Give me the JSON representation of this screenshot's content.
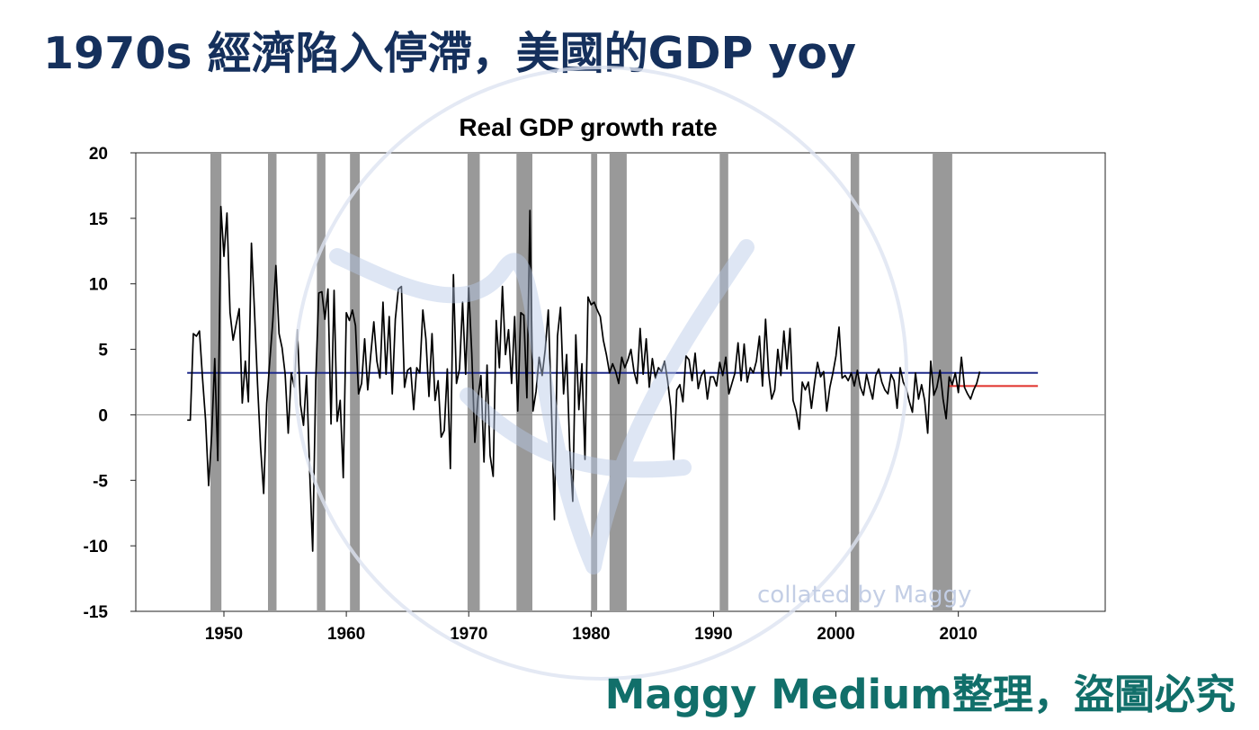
{
  "page": {
    "title": "1970s 經濟陷入停滯，美國的GDP yoy",
    "credit": "Maggy Medium整理，盜圖必究"
  },
  "watermark": {
    "monogram": "Mh",
    "text": "collated by Maggy"
  },
  "colors": {
    "title": "#15305c",
    "credit": "#116f6a",
    "recession_band": "#999999",
    "series_line": "#000000",
    "long_run_average": "#1f2a8a",
    "post_2009_average": "#e0302a",
    "zero_line": "#888888",
    "watermark": "#c3cee5"
  },
  "chart_data": {
    "type": "line",
    "title": "Real GDP growth rate",
    "xlabel": "",
    "ylabel": "",
    "xlim": [
      1942.8,
      2022.0
    ],
    "ylim": [
      -15,
      20
    ],
    "xticks": [
      1950,
      1960,
      1970,
      1980,
      1990,
      2000,
      2010
    ],
    "yticks": [
      20,
      15,
      10,
      5,
      0,
      -5,
      -10,
      -15
    ],
    "grid": false,
    "legend": "none",
    "recessions": [
      [
        1948.9,
        1949.8
      ],
      [
        1953.6,
        1954.3
      ],
      [
        1957.6,
        1958.3
      ],
      [
        1960.3,
        1961.1
      ],
      [
        1969.9,
        1970.9
      ],
      [
        1973.9,
        1975.2
      ],
      [
        1980.0,
        1980.5
      ],
      [
        1981.5,
        1982.9
      ],
      [
        1990.5,
        1991.2
      ],
      [
        2001.2,
        2001.9
      ],
      [
        2007.9,
        2009.5
      ]
    ],
    "series": [
      {
        "values": [
          [
            1947.0,
            -0.4
          ],
          [
            1947.25,
            -0.4
          ],
          [
            1947.5,
            6.2
          ],
          [
            1947.75,
            6.0
          ],
          [
            1948.0,
            6.4
          ],
          [
            1948.25,
            2.8
          ],
          [
            1948.5,
            -0.4
          ],
          [
            1948.75,
            -5.4
          ],
          [
            1949.0,
            -1.5
          ],
          [
            1949.25,
            4.3
          ],
          [
            1949.5,
            -3.5
          ],
          [
            1949.75,
            15.9
          ],
          [
            1950.0,
            12.1
          ],
          [
            1950.25,
            15.4
          ],
          [
            1950.5,
            7.8
          ],
          [
            1950.75,
            5.7
          ],
          [
            1951.0,
            6.9
          ],
          [
            1951.25,
            8.1
          ],
          [
            1951.5,
            0.9
          ],
          [
            1951.75,
            4.1
          ],
          [
            1952.0,
            1.0
          ],
          [
            1952.25,
            13.1
          ],
          [
            1952.5,
            7.9
          ],
          [
            1952.75,
            2.3
          ],
          [
            1953.0,
            -2.5
          ],
          [
            1953.25,
            -6.0
          ],
          [
            1953.5,
            0.9
          ],
          [
            1953.75,
            4.1
          ],
          [
            1954.0,
            7.2
          ],
          [
            1954.25,
            11.4
          ],
          [
            1954.5,
            6.2
          ],
          [
            1954.75,
            5.1
          ],
          [
            1955.0,
            3.1
          ],
          [
            1955.25,
            -1.4
          ],
          [
            1955.5,
            3.2
          ],
          [
            1955.75,
            2.1
          ],
          [
            1956.0,
            6.5
          ],
          [
            1956.25,
            0.8
          ],
          [
            1956.5,
            -0.8
          ],
          [
            1956.75,
            3.0
          ],
          [
            1957.0,
            -4.2
          ],
          [
            1957.25,
            -10.4
          ],
          [
            1957.5,
            2.6
          ],
          [
            1957.75,
            9.3
          ],
          [
            1958.0,
            9.4
          ],
          [
            1958.25,
            7.3
          ],
          [
            1958.5,
            9.6
          ],
          [
            1958.75,
            -0.7
          ],
          [
            1959.0,
            9.5
          ],
          [
            1959.25,
            -0.5
          ],
          [
            1959.5,
            1.1
          ],
          [
            1959.75,
            -4.8
          ],
          [
            1960.0,
            7.8
          ],
          [
            1960.25,
            7.2
          ],
          [
            1960.5,
            8.0
          ],
          [
            1960.75,
            6.8
          ],
          [
            1961.0,
            1.6
          ],
          [
            1961.25,
            2.4
          ],
          [
            1961.5,
            5.8
          ],
          [
            1961.75,
            1.9
          ],
          [
            1962.0,
            4.6
          ],
          [
            1962.25,
            7.1
          ],
          [
            1962.5,
            4.1
          ],
          [
            1962.75,
            2.8
          ],
          [
            1963.0,
            8.6
          ],
          [
            1963.25,
            3.1
          ],
          [
            1963.5,
            7.5
          ],
          [
            1963.75,
            1.6
          ],
          [
            1964.0,
            7.3
          ],
          [
            1964.25,
            9.6
          ],
          [
            1964.5,
            9.8
          ],
          [
            1964.75,
            2.1
          ],
          [
            1965.0,
            3.4
          ],
          [
            1965.25,
            3.6
          ],
          [
            1965.5,
            0.4
          ],
          [
            1965.75,
            3.6
          ],
          [
            1966.0,
            3.2
          ],
          [
            1966.25,
            8.0
          ],
          [
            1966.5,
            5.8
          ],
          [
            1966.75,
            1.4
          ],
          [
            1967.0,
            6.2
          ],
          [
            1967.25,
            1.1
          ],
          [
            1967.5,
            2.6
          ],
          [
            1967.75,
            -1.7
          ],
          [
            1968.0,
            -1.2
          ],
          [
            1968.25,
            3.5
          ],
          [
            1968.5,
            -4.1
          ],
          [
            1968.75,
            10.7
          ],
          [
            1969.0,
            2.4
          ],
          [
            1969.25,
            3.5
          ],
          [
            1969.5,
            8.6
          ],
          [
            1969.75,
            3.1
          ],
          [
            1970.0,
            9.7
          ],
          [
            1970.25,
            4.7
          ],
          [
            1970.5,
            -2.1
          ],
          [
            1970.75,
            1.2
          ],
          [
            1971.0,
            3.0
          ],
          [
            1971.25,
            -3.6
          ],
          [
            1971.5,
            3.8
          ],
          [
            1971.75,
            -3.1
          ],
          [
            1972.0,
            -4.7
          ],
          [
            1972.25,
            7.2
          ],
          [
            1972.5,
            3.6
          ],
          [
            1972.75,
            9.8
          ],
          [
            1973.0,
            4.6
          ],
          [
            1973.25,
            6.5
          ],
          [
            1973.5,
            2.4
          ],
          [
            1973.75,
            7.5
          ],
          [
            1974.0,
            0.3
          ],
          [
            1974.25,
            7.8
          ],
          [
            1974.5,
            7.6
          ],
          [
            1974.75,
            1.3
          ],
          [
            1975.0,
            15.6
          ],
          [
            1975.25,
            0.3
          ],
          [
            1975.5,
            1.8
          ],
          [
            1975.75,
            4.4
          ],
          [
            1976.0,
            3.0
          ],
          [
            1976.25,
            5.0
          ],
          [
            1976.5,
            8.0
          ],
          [
            1976.75,
            0.8
          ],
          [
            1977.0,
            -8.0
          ],
          [
            1977.25,
            6.0
          ],
          [
            1977.5,
            8.2
          ],
          [
            1977.75,
            1.6
          ],
          [
            1978.0,
            4.6
          ],
          [
            1978.25,
            -2.5
          ],
          [
            1978.5,
            -6.6
          ],
          [
            1978.75,
            6.1
          ],
          [
            1979.0,
            0.4
          ],
          [
            1979.25,
            3.9
          ],
          [
            1979.5,
            -3.4
          ],
          [
            1979.75,
            9.0
          ],
          [
            1980.0,
            8.4
          ],
          [
            1980.25,
            8.6
          ],
          [
            1980.5,
            8.0
          ],
          [
            1980.75,
            7.5
          ],
          [
            1981.0,
            5.7
          ],
          [
            1981.25,
            4.6
          ],
          [
            1981.5,
            3.2
          ],
          [
            1981.75,
            3.9
          ],
          [
            1982.0,
            3.3
          ],
          [
            1982.25,
            2.4
          ],
          [
            1982.5,
            4.4
          ],
          [
            1982.75,
            3.6
          ],
          [
            1983.0,
            4.2
          ],
          [
            1983.25,
            5.0
          ],
          [
            1983.5,
            3.3
          ],
          [
            1983.75,
            2.4
          ],
          [
            1984.0,
            6.6
          ],
          [
            1984.25,
            3.1
          ],
          [
            1984.5,
            5.8
          ],
          [
            1984.75,
            2.1
          ],
          [
            1985.0,
            4.3
          ],
          [
            1985.25,
            2.8
          ],
          [
            1985.5,
            3.6
          ],
          [
            1985.75,
            3.3
          ],
          [
            1986.0,
            4.1
          ],
          [
            1986.25,
            2.6
          ],
          [
            1986.5,
            0.6
          ],
          [
            1986.75,
            -3.4
          ],
          [
            1987.0,
            1.9
          ],
          [
            1987.25,
            2.3
          ],
          [
            1987.5,
            1.0
          ],
          [
            1987.75,
            4.5
          ],
          [
            1988.0,
            4.2
          ],
          [
            1988.25,
            2.6
          ],
          [
            1988.5,
            4.7
          ],
          [
            1988.75,
            2.0
          ],
          [
            1989.0,
            3.0
          ],
          [
            1989.25,
            3.4
          ],
          [
            1989.5,
            1.2
          ],
          [
            1989.75,
            2.9
          ],
          [
            1990.0,
            2.9
          ],
          [
            1990.25,
            2.2
          ],
          [
            1990.5,
            4.0
          ],
          [
            1990.75,
            3.0
          ],
          [
            1991.0,
            4.4
          ],
          [
            1991.25,
            1.6
          ],
          [
            1991.5,
            2.4
          ],
          [
            1991.75,
            3.2
          ],
          [
            1992.0,
            5.5
          ],
          [
            1992.25,
            2.6
          ],
          [
            1992.5,
            5.4
          ],
          [
            1992.75,
            2.5
          ],
          [
            1993.0,
            3.6
          ],
          [
            1993.25,
            3.2
          ],
          [
            1993.5,
            4.1
          ],
          [
            1993.75,
            6.0
          ],
          [
            1994.0,
            2.2
          ],
          [
            1994.25,
            7.3
          ],
          [
            1994.5,
            3.2
          ],
          [
            1994.75,
            1.2
          ],
          [
            1995.0,
            1.9
          ],
          [
            1995.25,
            5.0
          ],
          [
            1995.5,
            3.0
          ],
          [
            1995.75,
            6.4
          ],
          [
            1996.0,
            3.5
          ],
          [
            1996.25,
            6.6
          ],
          [
            1996.5,
            1.1
          ],
          [
            1996.75,
            0.3
          ],
          [
            1997.0,
            -1.1
          ],
          [
            1997.25,
            2.5
          ],
          [
            1997.5,
            1.9
          ],
          [
            1997.75,
            2.5
          ],
          [
            1998.0,
            0.5
          ],
          [
            1998.25,
            2.4
          ],
          [
            1998.5,
            4.0
          ],
          [
            1998.75,
            2.9
          ],
          [
            1999.0,
            3.3
          ],
          [
            1999.25,
            0.3
          ],
          [
            1999.5,
            2.1
          ],
          [
            1999.75,
            3.2
          ],
          [
            2000.0,
            4.5
          ],
          [
            2000.25,
            6.7
          ],
          [
            2000.5,
            2.8
          ],
          [
            2000.75,
            3.0
          ],
          [
            2001.0,
            2.6
          ],
          [
            2001.25,
            3.2
          ],
          [
            2001.5,
            2.2
          ],
          [
            2001.75,
            3.4
          ],
          [
            2002.0,
            2.1
          ],
          [
            2002.25,
            1.5
          ],
          [
            2002.5,
            3.1
          ],
          [
            2002.75,
            2.1
          ],
          [
            2003.0,
            1.2
          ],
          [
            2003.25,
            3.0
          ],
          [
            2003.5,
            3.5
          ],
          [
            2003.75,
            2.5
          ],
          [
            2004.0,
            1.9
          ],
          [
            2004.25,
            1.6
          ],
          [
            2004.5,
            3.1
          ],
          [
            2004.75,
            2.6
          ],
          [
            2005.0,
            0.5
          ],
          [
            2005.25,
            3.6
          ],
          [
            2005.5,
            2.5
          ],
          [
            2005.75,
            2.0
          ],
          [
            2006.0,
            1.0
          ],
          [
            2006.25,
            0.2
          ],
          [
            2006.5,
            3.2
          ],
          [
            2006.75,
            1.2
          ],
          [
            2007.0,
            2.3
          ],
          [
            2007.25,
            1.1
          ],
          [
            2007.5,
            -1.4
          ],
          [
            2007.75,
            4.1
          ],
          [
            2008.0,
            1.5
          ],
          [
            2008.25,
            2.1
          ],
          [
            2008.5,
            3.4
          ],
          [
            2008.75,
            1.2
          ],
          [
            2009.0,
            -0.3
          ],
          [
            2009.25,
            2.9
          ],
          [
            2009.5,
            2.3
          ],
          [
            2009.75,
            3.2
          ],
          [
            2010.0,
            1.7
          ],
          [
            2010.25,
            4.4
          ],
          [
            2010.5,
            2.1
          ],
          [
            2010.75,
            1.6
          ],
          [
            2011.0,
            1.2
          ],
          [
            2011.25,
            1.9
          ],
          [
            2011.5,
            2.4
          ],
          [
            2011.75,
            3.3
          ]
        ]
      }
    ],
    "average_lines": [
      {
        "x": [
          1947.0,
          2016.5
        ],
        "y": 3.2
      },
      {
        "x": [
          2009.25,
          2016.5
        ],
        "y": 2.2
      }
    ]
  }
}
